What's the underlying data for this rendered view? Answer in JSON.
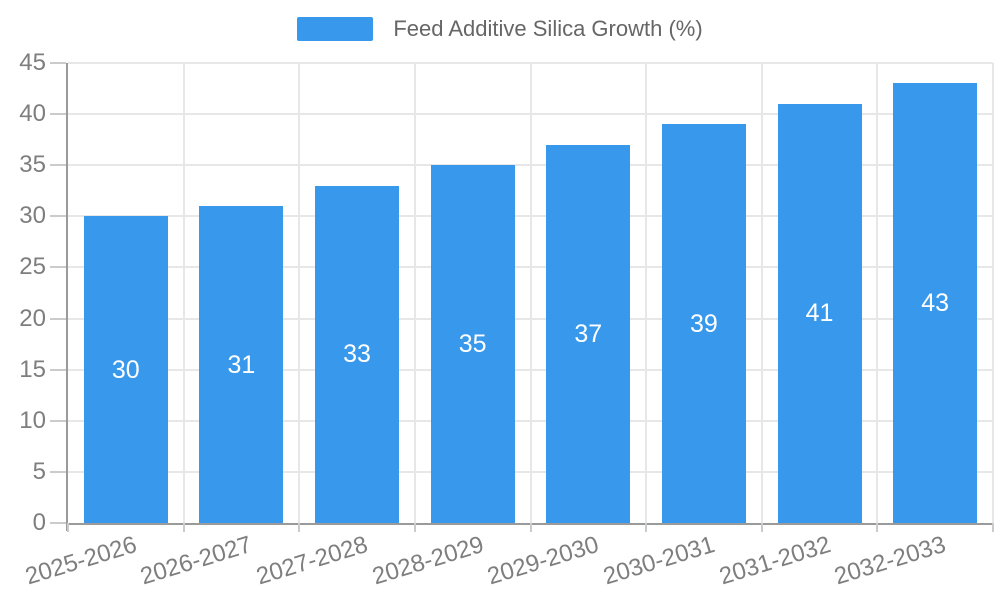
{
  "legend": {
    "label": "Feed Additive Silica Growth (%)"
  },
  "chart_data": {
    "type": "bar",
    "title": "",
    "series_name": "Feed Additive Silica Growth (%)",
    "categories": [
      "2025-2026",
      "2026-2027",
      "2027-2028",
      "2028-2029",
      "2029-2030",
      "2030-2031",
      "2031-2032",
      "2032-2033"
    ],
    "values": [
      30,
      31,
      33,
      35,
      37,
      39,
      41,
      43
    ],
    "value_labels": [
      "30",
      "31",
      "33",
      "35",
      "37",
      "39",
      "41",
      "43"
    ],
    "yticks": [
      0,
      5,
      10,
      15,
      20,
      25,
      30,
      35,
      40,
      45
    ],
    "ylim": [
      0,
      45
    ],
    "ytick_step": 5,
    "xlabel": "",
    "ylabel": "",
    "grid": true,
    "legend_position": "top-center",
    "x_label_rotation_deg": -17,
    "colors": {
      "bar": "#3899EC",
      "bar_value_text": "#FFFFFF",
      "grid": "#E7E7E7",
      "axis_line": "#9A9A9A",
      "tick_mark": "#CBCBCB",
      "tick_text": "#7E7E7E",
      "legend_text": "#666666",
      "background": "#FFFFFF"
    }
  }
}
